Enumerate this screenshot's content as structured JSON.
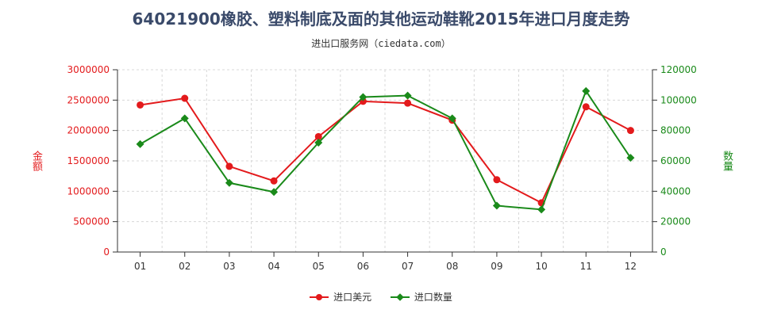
{
  "title": "64021900橡胶、塑料制底及面的其他运动鞋靴2015年进口月度走势",
  "subtitle": "进出口服务网（ciedata.com）",
  "chart_data": {
    "type": "line",
    "categories": [
      "01",
      "02",
      "03",
      "04",
      "05",
      "06",
      "07",
      "08",
      "09",
      "10",
      "11",
      "12"
    ],
    "series": [
      {
        "name": "进口美元",
        "axis": "left",
        "color": "#e31a1c",
        "values": [
          2420000,
          2530000,
          1410000,
          1170000,
          1900000,
          2480000,
          2450000,
          2170000,
          1190000,
          810000,
          2390000,
          2000000
        ]
      },
      {
        "name": "进口数量",
        "axis": "right",
        "color": "#1a8a1a",
        "values": [
          71000,
          88000,
          45500,
          39500,
          72000,
          102000,
          103000,
          88000,
          30500,
          28000,
          106000,
          62000
        ]
      }
    ],
    "y_left": {
      "label": "金额",
      "ylim": [
        0,
        3000000
      ],
      "ticks": [
        "0",
        "500000",
        "1000000",
        "1500000",
        "2000000",
        "2500000",
        "3000000"
      ],
      "color": "#e31a1c"
    },
    "y_right": {
      "label": "数量",
      "ylim": [
        0,
        120000
      ],
      "ticks": [
        "0",
        "20000",
        "40000",
        "60000",
        "80000",
        "100000",
        "120000"
      ],
      "color": "#1a8a1a"
    },
    "grid": true,
    "legend_position": "bottom-center"
  }
}
